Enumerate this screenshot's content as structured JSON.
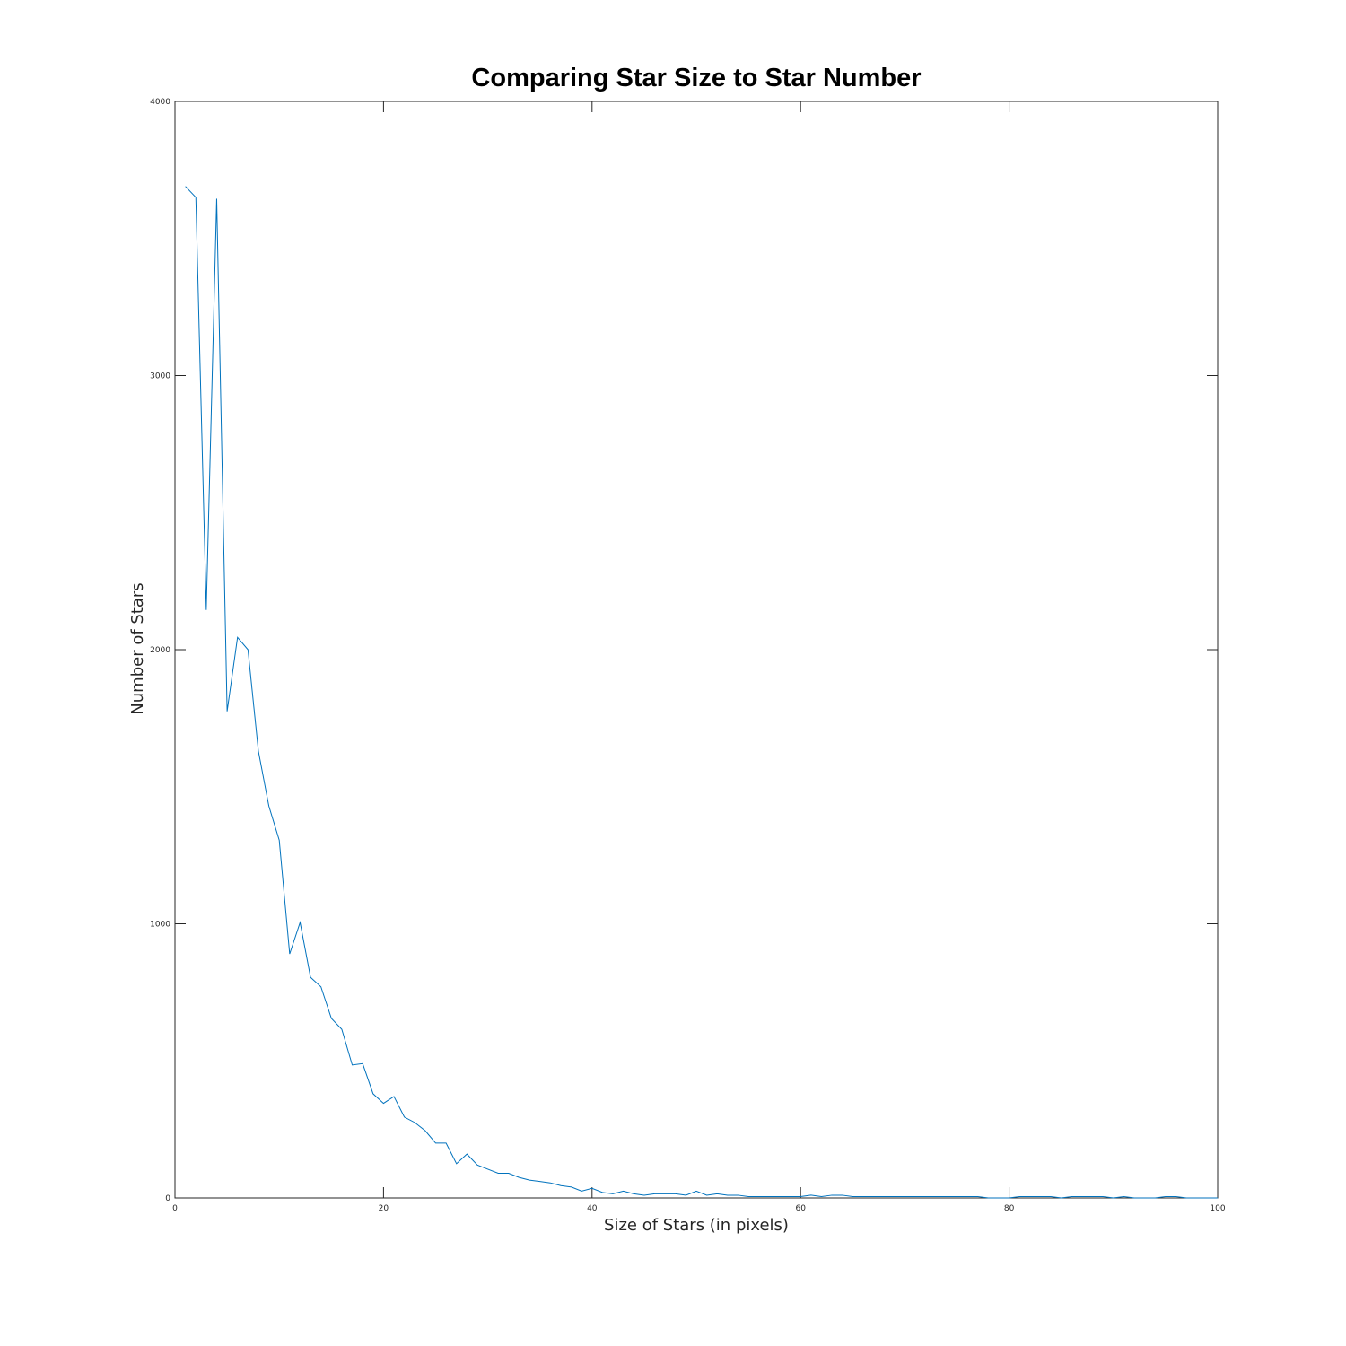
{
  "chart_data": {
    "type": "line",
    "title": "Comparing Star Size to Star Number",
    "xlabel": "Size of Stars (in pixels)",
    "ylabel": "Number of Stars",
    "xlim": [
      0,
      100
    ],
    "ylim": [
      0,
      4000
    ],
    "xticks": [
      0,
      20,
      40,
      60,
      80,
      100
    ],
    "yticks": [
      0,
      1000,
      2000,
      3000,
      4000
    ],
    "xtick_labels": [
      "0",
      "20",
      "40",
      "60",
      "80",
      "100"
    ],
    "ytick_labels": [
      "0",
      "1000",
      "2000",
      "3000",
      "4000"
    ],
    "grid": false,
    "series": [
      {
        "color": "#0072BD",
        "x": [
          1,
          2,
          3,
          4,
          5,
          6,
          7,
          8,
          9,
          10,
          11,
          12,
          13,
          14,
          15,
          16,
          17,
          18,
          19,
          20,
          21,
          22,
          23,
          24,
          25,
          26,
          27,
          28,
          29,
          30,
          31,
          32,
          33,
          34,
          35,
          36,
          37,
          38,
          39,
          40,
          41,
          42,
          43,
          44,
          45,
          46,
          47,
          48,
          49,
          50,
          51,
          52,
          53,
          54,
          55,
          56,
          57,
          58,
          59,
          60,
          61,
          62,
          63,
          64,
          65,
          66,
          67,
          68,
          69,
          70,
          71,
          72,
          73,
          74,
          75,
          76,
          77,
          78,
          79,
          80,
          81,
          82,
          83,
          84,
          85,
          86,
          87,
          88,
          89,
          90,
          91,
          92,
          93,
          94,
          95,
          96,
          97,
          98,
          99,
          100
        ],
        "values": [
          3690,
          3650,
          2145,
          3645,
          1775,
          2045,
          2000,
          1630,
          1430,
          1305,
          890,
          1005,
          805,
          770,
          655,
          615,
          485,
          490,
          380,
          345,
          370,
          295,
          275,
          245,
          200,
          200,
          125,
          160,
          120,
          105,
          90,
          90,
          75,
          65,
          60,
          55,
          45,
          40,
          25,
          35,
          20,
          15,
          25,
          15,
          10,
          15,
          15,
          15,
          10,
          25,
          10,
          15,
          10,
          10,
          5,
          5,
          5,
          5,
          5,
          5,
          10,
          5,
          10,
          10,
          5,
          5,
          5,
          5,
          5,
          5,
          5,
          5,
          5,
          5,
          5,
          5,
          5,
          0,
          0,
          0,
          5,
          5,
          5,
          5,
          0,
          5,
          5,
          5,
          5,
          0,
          5,
          0,
          0,
          0,
          5,
          5,
          0,
          0,
          0,
          0
        ]
      }
    ]
  }
}
